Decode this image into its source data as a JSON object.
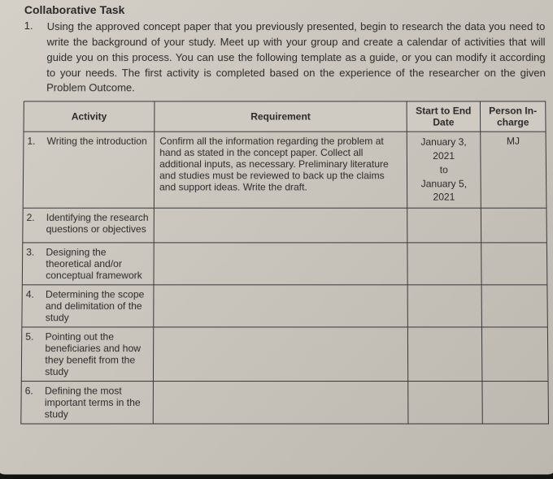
{
  "heading": "Collaborative Task",
  "instruction_number": "1.",
  "instruction_text": "Using the approved concept paper that you previously presented, begin to research the data you need to write the background of your study. Meet up with your group and create a calendar of activities that will guide you on this process. You can use the following template as a guide, or you can modify it according to your needs. The first activity is completed based on the experience of the researcher on the given Problem Outcome.",
  "table": {
    "headers": {
      "activity": "Activity",
      "requirement": "Requirement",
      "date": "Start to End Date",
      "person": "Person In-charge"
    },
    "rows": [
      {
        "num": "1.",
        "activity": "Writing the introduction",
        "requirement": "Confirm all the information regarding the problem at hand as stated in the concept paper. Collect all additional inputs, as necessary. Preliminary literature and studies must be reviewed to back up the claims and support ideas. Write the draft.",
        "date_start": "January 3, 2021",
        "date_mid": "to",
        "date_end": "January 5, 2021",
        "person": "MJ"
      },
      {
        "num": "2.",
        "activity": "Identifying the research questions or objectives",
        "requirement": "",
        "date_start": "",
        "date_mid": "",
        "date_end": "",
        "person": ""
      },
      {
        "num": "3.",
        "activity": "Designing the theoretical and/or conceptual framework",
        "requirement": "",
        "date_start": "",
        "date_mid": "",
        "date_end": "",
        "person": ""
      },
      {
        "num": "4.",
        "activity": "Determining the scope and delimitation of the study",
        "requirement": "",
        "date_start": "",
        "date_mid": "",
        "date_end": "",
        "person": ""
      },
      {
        "num": "5.",
        "activity": "Pointing out the beneficiaries and how they benefit from the study",
        "requirement": "",
        "date_start": "",
        "date_mid": "",
        "date_end": "",
        "person": ""
      },
      {
        "num": "6.",
        "activity": "Defining the most important terms in the study",
        "requirement": "",
        "date_start": "",
        "date_mid": "",
        "date_end": "",
        "person": ""
      }
    ]
  }
}
